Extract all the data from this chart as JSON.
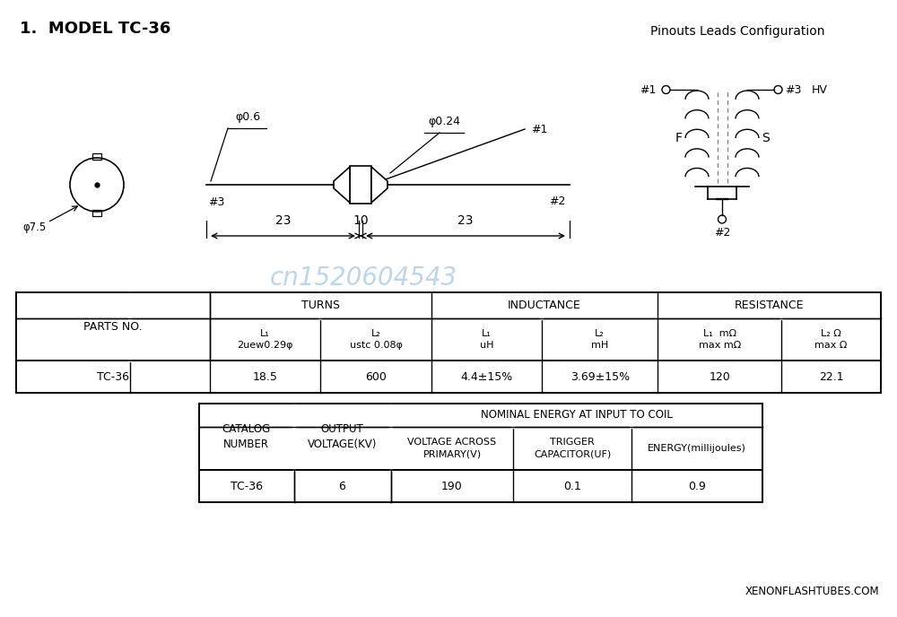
{
  "title": "1.  MODEL TC-36",
  "bg_color": "#ffffff",
  "watermark": "cn1520604543",
  "watermark_color": "#a8c8e0",
  "pinouts_title": "Pinouts Leads Configuration",
  "website": "XENONFLASHTUBES.COM",
  "phi06": "φ0.6",
  "phi024": "φ0.24",
  "phi75": "φ7.5",
  "pin1": "#1",
  "pin2": "#2",
  "pin3": "#3",
  "dim23left": "23",
  "dim10": "10",
  "dim23right": "23",
  "F": "F",
  "S": "S",
  "HV": "HV",
  "t1_header1": [
    "TURNS",
    "INDUCTANCE",
    "RESISTANCE"
  ],
  "t1_header2_L1a": "L₁\n2uew0.29φ",
  "t1_header2_L2a": "L₂\nustc 0.08φ",
  "t1_header2_L1b": "L₁\nuH",
  "t1_header2_L2b": "L₂\nmH",
  "t1_header2_L1c": "L₁  mΩ\nmax mΩ",
  "t1_header2_L2c": "L₂ Ω\nmax Ω",
  "t1_parts": "PARTS NO.",
  "t1_data": [
    "TC-36",
    "18.5",
    "600",
    "4.4±15%",
    "3.69±15%",
    "120",
    "22.1"
  ],
  "t2_catalog": "CATALOG\nNUMBER",
  "t2_output": "OUTPUT\nVOLTAGE(KV)",
  "t2_nominal": "NOMINAL ENERGY AT INPUT TO COIL",
  "t2_voltage": "VOLTAGE ACROSS\nPRIMARY(V)",
  "t2_trigger": "TRIGGER\nCAPACITOR(UF)",
  "t2_energy": "ENERGY(millijoules)",
  "t2_data": [
    "TC-36",
    "6",
    "190",
    "0.1",
    "0.9"
  ]
}
